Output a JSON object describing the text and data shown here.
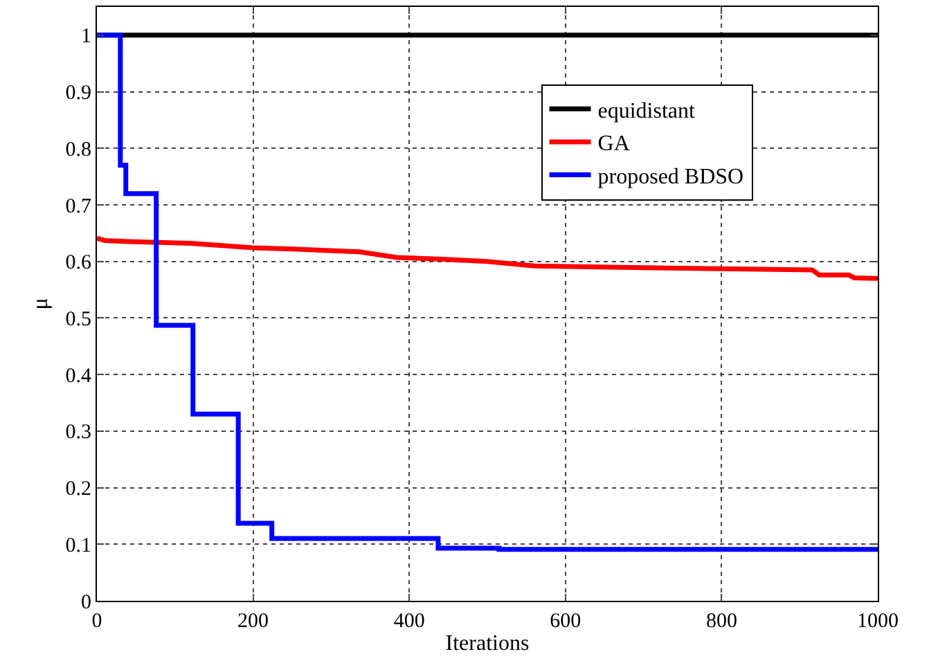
{
  "chart_data": {
    "type": "step",
    "xlabel": "Iterations",
    "ylabel": "μ",
    "xlim": [
      0,
      1000
    ],
    "ylim": [
      0,
      1.05
    ],
    "xticks": [
      0,
      200,
      400,
      600,
      800,
      1000
    ],
    "yticks": [
      0,
      0.1,
      0.2,
      0.3,
      0.4,
      0.5,
      0.6,
      0.7,
      0.8,
      0.9,
      1
    ],
    "grid": true,
    "legend": "top right",
    "marker": "none",
    "line_style": "solid",
    "series": [
      {
        "name": "equidistant",
        "color": "#000000",
        "x": [
          0,
          1000
        ],
        "values": [
          1,
          1
        ]
      },
      {
        "name": "GA",
        "color": "#ff0000",
        "type": "line",
        "x": [
          0,
          10,
          40,
          120,
          160,
          200,
          250,
          336,
          384,
          442,
          500,
          561,
          700,
          800,
          916,
          925,
          963,
          970,
          1000
        ],
        "values": [
          0.641,
          0.637,
          0.635,
          0.632,
          0.628,
          0.624,
          0.622,
          0.617,
          0.607,
          0.604,
          0.6,
          0.592,
          0.589,
          0.587,
          0.585,
          0.576,
          0.576,
          0.571,
          0.57
        ]
      },
      {
        "name": "proposed BDSO",
        "color": "#0000ff",
        "x": [
          0,
          30,
          37,
          76,
          123,
          181,
          224,
          437,
          515,
          1000
        ],
        "values": [
          1,
          0.77,
          0.72,
          0.487,
          0.33,
          0.137,
          0.11,
          0.093,
          0.091,
          0.091
        ]
      }
    ]
  }
}
